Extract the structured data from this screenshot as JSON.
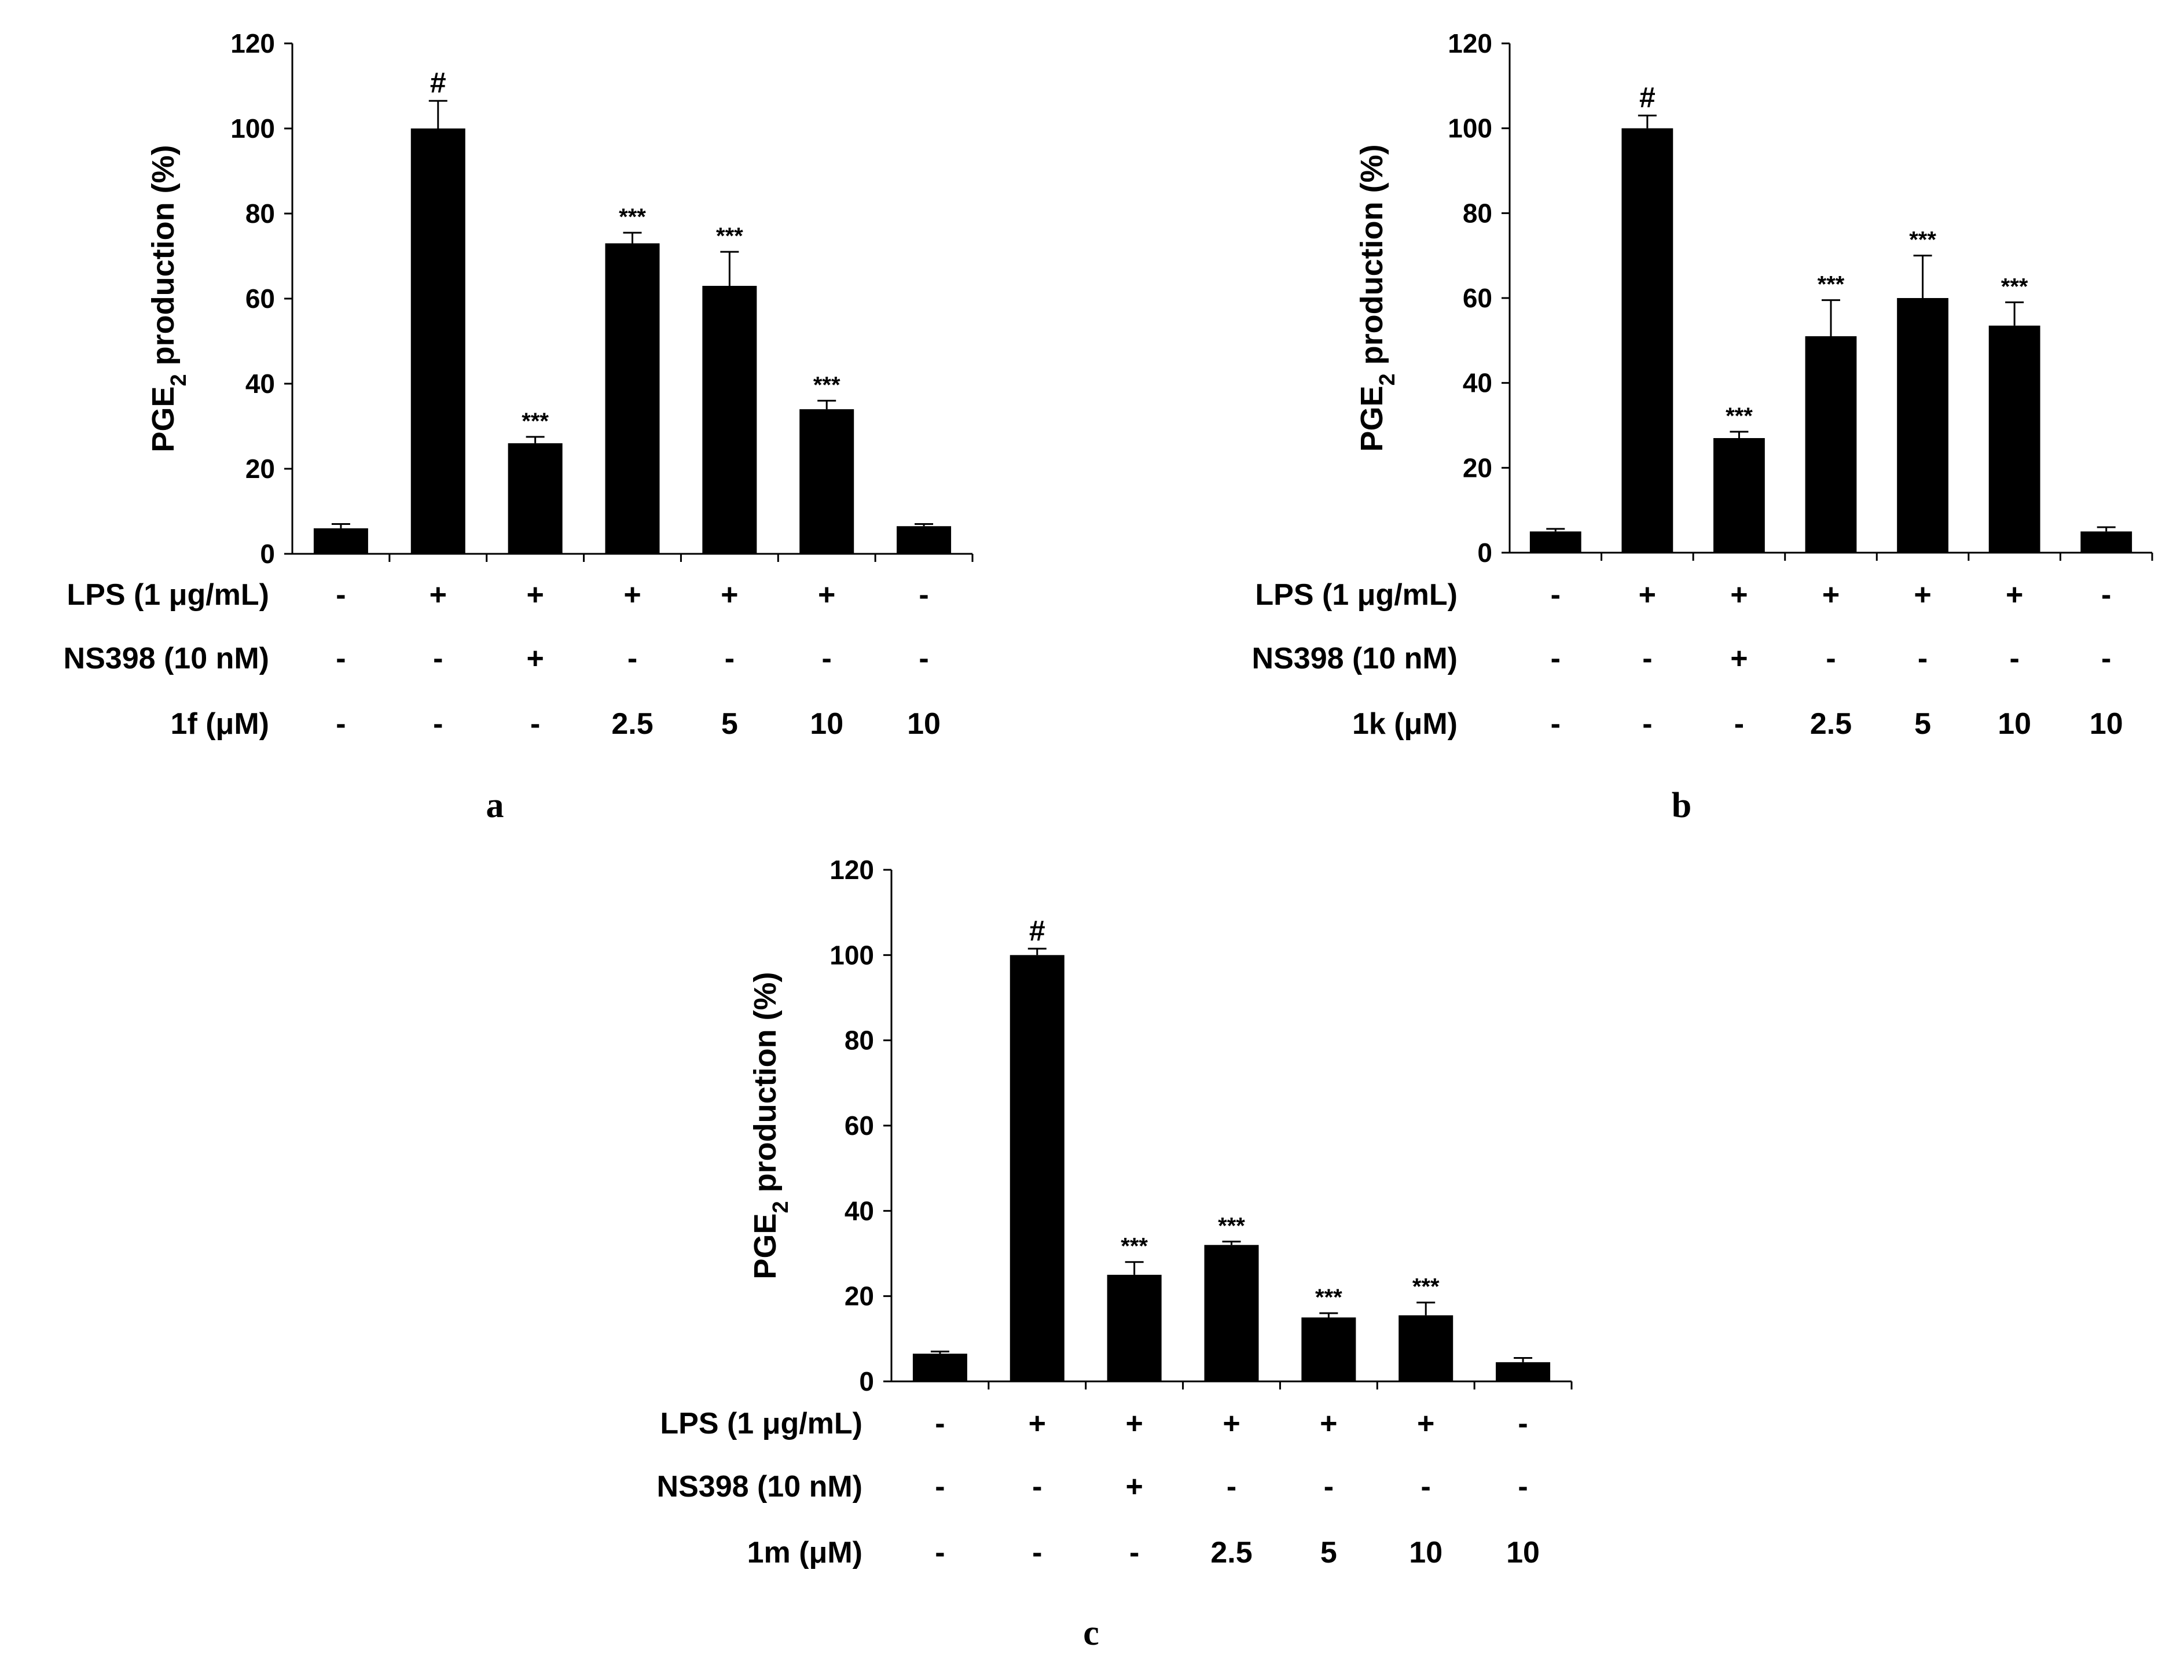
{
  "chart_data": [
    {
      "panel_label": "a",
      "type": "bar",
      "ylabel_main": "PGE",
      "ylabel_sub": "2",
      "ylabel_rest": " production (%)",
      "ylim": [
        0,
        120
      ],
      "yticks": [
        "0",
        "20",
        "40",
        "60",
        "80",
        "100",
        "120"
      ],
      "values": [
        6,
        100,
        26,
        73,
        63,
        34,
        6.5
      ],
      "errors": [
        1,
        6.5,
        1.5,
        2.5,
        8,
        2,
        0.5
      ],
      "annotations": [
        "",
        "#",
        "***",
        "***",
        "***",
        "***",
        ""
      ],
      "rows": [
        {
          "label": "LPS (1 μg/mL)",
          "cells": [
            "-",
            "+",
            "+",
            "+",
            "+",
            "+",
            "-"
          ]
        },
        {
          "label": "NS398 (10 nM)",
          "cells": [
            "-",
            "-",
            "+",
            "-",
            "-",
            "-",
            "-"
          ]
        },
        {
          "label": "1f (μM)",
          "cells": [
            "-",
            "-",
            "-",
            "2.5",
            "5",
            "10",
            "10"
          ]
        }
      ]
    },
    {
      "panel_label": "b",
      "type": "bar",
      "ylabel_main": "PGE",
      "ylabel_sub": "2",
      "ylabel_rest": " production (%)",
      "ylim": [
        0,
        120
      ],
      "yticks": [
        "0",
        "20",
        "40",
        "60",
        "80",
        "100",
        "120"
      ],
      "values": [
        5,
        100,
        27,
        51,
        60,
        53.5,
        5
      ],
      "errors": [
        0.6,
        3,
        1.5,
        8.5,
        10,
        5.5,
        1
      ],
      "annotations": [
        "",
        "#",
        "***",
        "***",
        "***",
        "***",
        ""
      ],
      "rows": [
        {
          "label": "LPS (1 μg/mL)",
          "cells": [
            "-",
            "+",
            "+",
            "+",
            "+",
            "+",
            "-"
          ]
        },
        {
          "label": "NS398 (10 nM)",
          "cells": [
            "-",
            "-",
            "+",
            "-",
            "-",
            "-",
            "-"
          ]
        },
        {
          "label": "1k (μM)",
          "cells": [
            "-",
            "-",
            "-",
            "2.5",
            "5",
            "10",
            "10"
          ]
        }
      ]
    },
    {
      "panel_label": "c",
      "type": "bar",
      "ylabel_main": "PGE",
      "ylabel_sub": "2",
      "ylabel_rest": " production (%)",
      "ylim": [
        0,
        120
      ],
      "yticks": [
        "0",
        "20",
        "40",
        "60",
        "80",
        "100",
        "120"
      ],
      "values": [
        6.5,
        100,
        25,
        32,
        15,
        15.5,
        4.5
      ],
      "errors": [
        0.5,
        1.5,
        3,
        0.8,
        1,
        3,
        1
      ],
      "annotations": [
        "",
        "#",
        "***",
        "***",
        "***",
        "***",
        ""
      ],
      "rows": [
        {
          "label": "LPS (1 μg/mL)",
          "cells": [
            "-",
            "+",
            "+",
            "+",
            "+",
            "+",
            "-"
          ]
        },
        {
          "label": "NS398 (10 nM)",
          "cells": [
            "-",
            "-",
            "+",
            "-",
            "-",
            "-",
            "-"
          ]
        },
        {
          "label": "1m (μM)",
          "cells": [
            "-",
            "-",
            "-",
            "2.5",
            "5",
            "10",
            "10"
          ]
        }
      ]
    }
  ]
}
